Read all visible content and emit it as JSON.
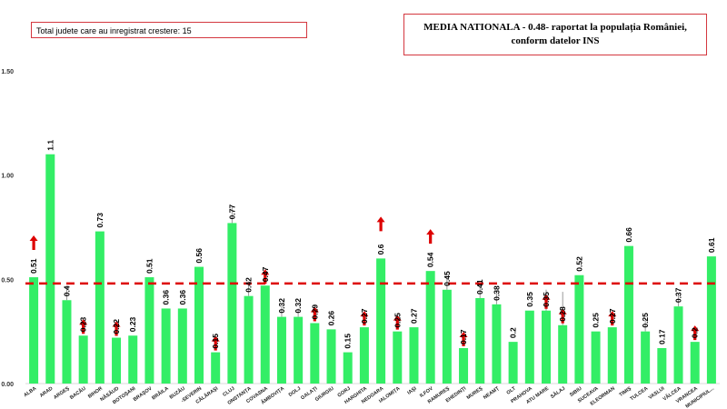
{
  "info_box": {
    "text": "Total judete care au inregistrat crestere: 15"
  },
  "media_box": {
    "line1": "MEDIA NATIONALA - 0.48- raportat la populația României,",
    "line2": "conform datelor INS"
  },
  "colors": {
    "bar": "#33ee66",
    "reference": "#dd0000",
    "arrow": "#dd0000",
    "error": "#999999"
  },
  "chart_data": {
    "type": "bar",
    "title": "",
    "xlabel": "",
    "ylabel": "",
    "ylim": [
      0,
      1.5
    ],
    "y_ticks": [
      0,
      0.5,
      1,
      1.5
    ],
    "y_tick_labels": [
      "0.00",
      "0.50",
      "1.00",
      "1.50"
    ],
    "reference_line": {
      "value": 0.48,
      "style": "dashed"
    },
    "categories": [
      "ALBA",
      "ARAD",
      "ARGEȘ",
      "BACĂU",
      "BIHOR",
      "BISTRIȚA-NĂSĂUD",
      "BOTOȘANI",
      "BRAȘOV",
      "BRĂILA",
      "BUZĂU",
      "CARAȘ-SEVERIN",
      "CĂLĂRAȘI",
      "CLUJ",
      "CONSTANȚA",
      "COVASNA",
      "DÂMBOVIȚA",
      "DOLJ",
      "GALAȚI",
      "GIURGIU",
      "GORJ",
      "HARGHITA",
      "HUNEDOARA",
      "IALOMIȚA",
      "IAȘI",
      "ILFOV",
      "MARAMUREȘ",
      "MEHEDINȚI",
      "MUREȘ",
      "NEAMȚ",
      "OLT",
      "PRAHOVA",
      "SATU MARE",
      "SĂLAJ",
      "SIBIU",
      "SUCEAVA",
      "TELEORMAN",
      "TIMIȘ",
      "TULCEA",
      "VASLUI",
      "VÂLCEA",
      "VRANCEA",
      "MUNICIPIUL..."
    ],
    "category_labels": [
      "ALBA",
      "ARAD",
      "ARGEȘ",
      "BACĂU",
      "BIHOR",
      "NĂSĂUD",
      "BOTOȘANI",
      "BRAȘOV",
      "BRĂILA",
      "BUZĂU",
      "-SEVERIN",
      "CĂLĂRAȘI",
      "CLUJ",
      "ONSTANȚA",
      "COVASNA",
      "ÂMBOVIȚA",
      "DOLJ",
      "GALAȚI",
      "GIURGIU",
      "GORJ",
      "HARGHITA",
      "NEDOARA",
      "IALOMIȚA",
      "IAȘI",
      "ILFOV",
      "RAMUREȘ",
      "EHEDINȚI",
      "MUREȘ",
      "NEAMȚ",
      "OLT",
      "PRAHOVA",
      "ATU MARE",
      "SĂLAJ",
      "SIBIU",
      "SUCEAVA",
      "ELEORMAN",
      "TIMIȘ",
      "TULCEA",
      "VASLUI",
      "VÂLCEA",
      "VRANCEA",
      "MUNICIPIUL..."
    ],
    "values": [
      0.51,
      1.1,
      0.4,
      0.23,
      0.73,
      0.22,
      0.23,
      0.51,
      0.36,
      0.36,
      0.56,
      0.15,
      0.77,
      0.42,
      0.47,
      0.32,
      0.32,
      0.29,
      0.26,
      0.15,
      0.27,
      0.6,
      0.25,
      0.27,
      0.54,
      0.45,
      0.17,
      0.41,
      0.38,
      0.2,
      0.35,
      0.35,
      0.28,
      0.52,
      0.25,
      0.27,
      0.66,
      0.25,
      0.17,
      0.37,
      0.2,
      0.61
    ],
    "value_labels": [
      "0.51",
      "1.1",
      "0.4",
      "0.23",
      "0.73",
      "0.22",
      "0.23",
      "0.51",
      "0.36",
      "0.36",
      "0.56",
      "0.15",
      "0.77",
      "0.42",
      "0.47",
      "0.32",
      "0.32",
      "0.29",
      "0.26",
      "0.15",
      "0.27",
      "0.6",
      "0.25",
      "0.27",
      "0.54",
      "0.45",
      "0.17",
      "0.41",
      "0.38",
      "0.2",
      "0.35",
      "0.35",
      "0.28",
      "0.52",
      "0.25",
      "0.27",
      "0.66",
      "0.25",
      "0.17",
      "0.37",
      "0.2",
      "0.61"
    ],
    "increase_arrows": [
      0,
      3,
      5,
      11,
      14,
      17,
      20,
      21,
      22,
      24,
      26,
      31,
      32,
      35,
      40
    ],
    "error_bar_tops": {
      "2": 0.47,
      "12": 0.85,
      "13": 0.49,
      "15": 0.38,
      "16": 0.36,
      "25": 0.51,
      "27": 0.48,
      "28": 0.45,
      "31": 0.45,
      "32": 0.44,
      "37": 0.31,
      "39": 0.43
    }
  }
}
